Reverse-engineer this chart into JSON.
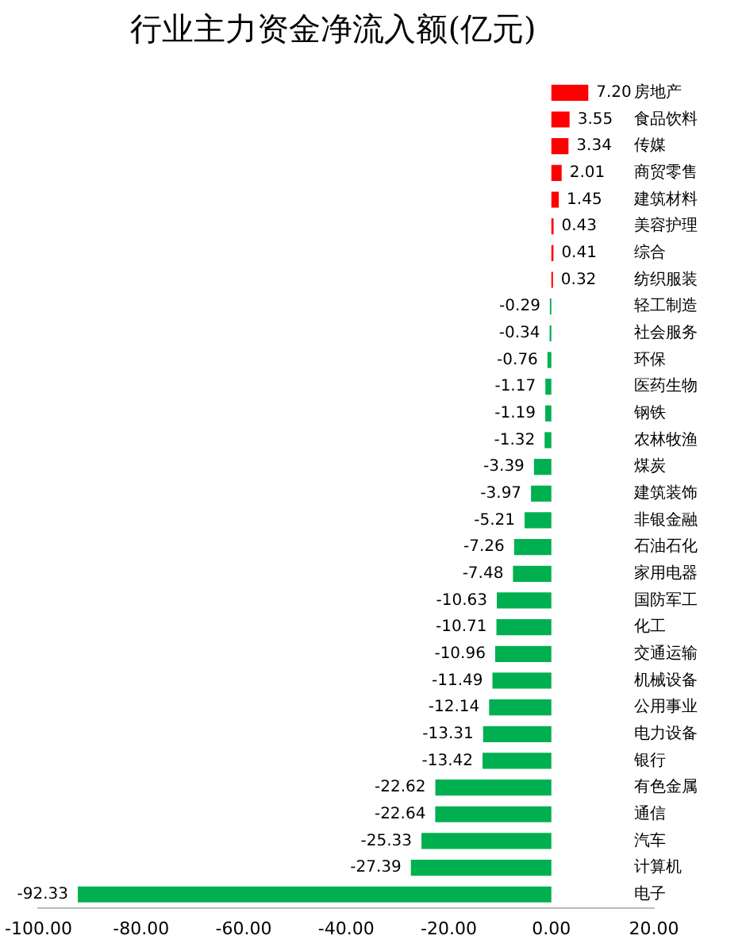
{
  "chart_data": {
    "type": "bar",
    "orientation": "horizontal",
    "title": "行业主力资金净流入额(亿元)",
    "categories": [
      "房地产",
      "食品饮料",
      "传媒",
      "商贸零售",
      "建筑材料",
      "美容护理",
      "综合",
      "纺织服装",
      "轻工制造",
      "社会服务",
      "环保",
      "医药生物",
      "钢铁",
      "农林牧渔",
      "煤炭",
      "建筑装饰",
      "非银金融",
      "石油石化",
      "家用电器",
      "国防军工",
      "化工",
      "交通运输",
      "机械设备",
      "公用事业",
      "电力设备",
      "银行",
      "有色金属",
      "通信",
      "汽车",
      "计算机",
      "电子"
    ],
    "values": [
      7.2,
      3.55,
      3.34,
      2.01,
      1.45,
      0.43,
      0.41,
      0.32,
      -0.29,
      -0.34,
      -0.76,
      -1.17,
      -1.19,
      -1.32,
      -3.39,
      -3.97,
      -5.21,
      -7.26,
      -7.48,
      -10.63,
      -10.71,
      -10.96,
      -11.49,
      -12.14,
      -13.31,
      -13.42,
      -22.62,
      -22.64,
      -25.33,
      -27.39,
      -92.33
    ],
    "value_labels": [
      "7.20",
      "3.55",
      "3.34",
      "2.01",
      "1.45",
      "0.43",
      "0.41",
      "0.32",
      "-0.29",
      "-0.34",
      "-0.76",
      "-1.17",
      "-1.19",
      "-1.32",
      "-3.39",
      "-3.97",
      "-5.21",
      "-7.26",
      "-7.48",
      "-10.63",
      "-10.71",
      "-10.96",
      "-11.49",
      "-12.14",
      "-13.31",
      "-13.42",
      "-22.62",
      "-22.64",
      "-25.33",
      "-27.39",
      "-92.33"
    ],
    "colors": [
      "#ff0000",
      "#ff0000",
      "#ff0000",
      "#ff0000",
      "#ff0000",
      "#ff0000",
      "#ff0000",
      "#ff0000",
      "#00b050",
      "#00b050",
      "#00b050",
      "#00b050",
      "#00b050",
      "#00b050",
      "#00b050",
      "#00b050",
      "#00b050",
      "#00b050",
      "#00b050",
      "#00b050",
      "#00b050",
      "#00b050",
      "#00b050",
      "#00b050",
      "#00b050",
      "#00b050",
      "#00b050",
      "#00b050",
      "#00b050",
      "#00b050",
      "#00b050"
    ],
    "xlim": [
      -100,
      20
    ],
    "xticks": [
      {
        "value": -100,
        "label": "-100.00"
      },
      {
        "value": -80,
        "label": "-80.00"
      },
      {
        "value": -60,
        "label": "-60.00"
      },
      {
        "value": -40,
        "label": "-40.00"
      },
      {
        "value": -20,
        "label": "-20.00"
      },
      {
        "value": 0,
        "label": "0.00"
      },
      {
        "value": 20,
        "label": "20.00"
      }
    ],
    "grid": false,
    "legend": false
  }
}
